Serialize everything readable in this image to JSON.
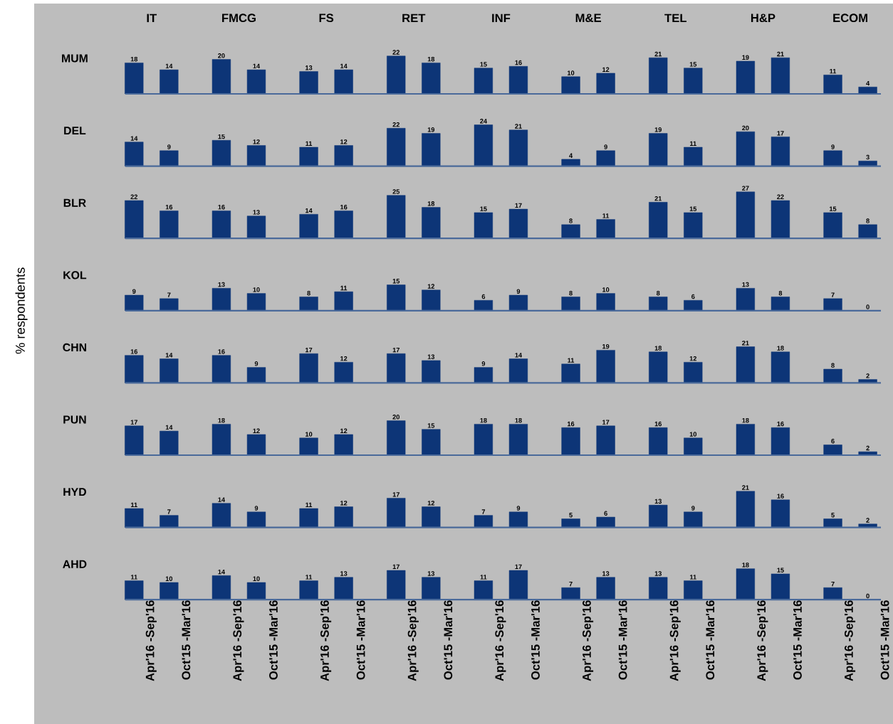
{
  "chart_data": [
    {
      "type": "bar",
      "title": "MUM",
      "categories": [
        "IT",
        "FMCG",
        "FS",
        "RET",
        "INF",
        "M&E",
        "TEL",
        "H&P",
        "ECOM"
      ],
      "tick_labels": "x",
      "data_labels": true,
      "series": [
        {
          "color": "#0d3577",
          "values": [
            18,
            20,
            13,
            22,
            15,
            10,
            21,
            19,
            11
          ]
        },
        {
          "color": "#0d3577",
          "values": [
            14,
            14,
            14,
            18,
            16,
            12,
            15,
            21,
            4
          ]
        }
      ]
    },
    {
      "type": "bar",
      "title": "DEL",
      "categories": [
        null,
        null,
        null,
        null,
        null,
        null,
        null,
        null,
        null
      ],
      "tick_labels": false,
      "data_labels": true,
      "series": [
        {
          "color": "#0d3577",
          "values": [
            14,
            15,
            11,
            22,
            24,
            4,
            19,
            20,
            9
          ]
        },
        {
          "color": "#0d3577",
          "values": [
            9,
            12,
            12,
            19,
            21,
            9,
            11,
            17,
            3
          ]
        }
      ]
    },
    {
      "type": "bar",
      "title": "BLR",
      "categories": [
        null,
        null,
        null,
        null,
        null,
        null,
        null,
        null,
        null
      ],
      "tick_labels": false,
      "data_labels": true,
      "series": [
        {
          "color": "#0d3577",
          "values": [
            22,
            16,
            14,
            25,
            15,
            8,
            21,
            27,
            15
          ]
        },
        {
          "color": "#0d3577",
          "values": [
            16,
            13,
            16,
            18,
            17,
            11,
            15,
            22,
            8
          ]
        }
      ]
    },
    {
      "type": "bar",
      "title": "KOL",
      "ylabel": "% respondents",
      "categories": [
        null,
        null,
        null,
        null,
        null,
        null,
        null,
        null,
        null
      ],
      "tick_labels": false,
      "data_labels": true,
      "series": [
        {
          "color": "#0d3577",
          "values": [
            9,
            13,
            8,
            15,
            6,
            8,
            8,
            13,
            7
          ]
        },
        {
          "color": "#0d3577",
          "values": [
            7,
            10,
            11,
            12,
            9,
            10,
            6,
            8,
            0
          ]
        }
      ]
    },
    {
      "type": "bar",
      "title": "CHN",
      "categories": [
        null,
        null,
        null,
        null,
        null,
        null,
        null,
        null,
        null
      ],
      "tick_labels": false,
      "data_labels": true,
      "series": [
        {
          "color": "#0d3577",
          "values": [
            16,
            16,
            17,
            17,
            9,
            11,
            18,
            21,
            8
          ]
        },
        {
          "color": "#0d3577",
          "values": [
            14,
            9,
            12,
            13,
            14,
            19,
            12,
            18,
            2
          ]
        }
      ]
    },
    {
      "type": "bar",
      "title": "PUN",
      "categories": [
        null,
        null,
        null,
        null,
        null,
        null,
        null,
        null,
        null
      ],
      "tick_labels": false,
      "data_labels": true,
      "series": [
        {
          "color": "#0d3577",
          "values": [
            17,
            18,
            10,
            20,
            18,
            16,
            16,
            18,
            6
          ]
        },
        {
          "color": "#0d3577",
          "values": [
            14,
            12,
            12,
            15,
            18,
            17,
            10,
            16,
            2
          ]
        }
      ]
    },
    {
      "type": "bar",
      "title": "HYD",
      "categories": [
        null,
        null,
        null,
        null,
        null,
        null,
        null,
        null,
        null
      ],
      "tick_labels": false,
      "data_labels": true,
      "series": [
        {
          "color": "#0d3577",
          "values": [
            11,
            14,
            11,
            17,
            7,
            5,
            13,
            21,
            5
          ]
        },
        {
          "color": "#0d3577",
          "values": [
            7,
            9,
            12,
            12,
            9,
            6,
            9,
            16,
            2
          ]
        }
      ]
    },
    {
      "type": "bar",
      "title": "AHD",
      "categories": [
        null,
        null,
        null,
        null,
        null,
        null,
        null,
        null,
        null
      ],
      "tick_labels": false,
      "data_labels": true,
      "series": [
        {
          "name": "Apr'16 -Sep'16",
          "color": "#0d3577",
          "values": [
            11,
            14,
            11,
            17,
            11,
            7,
            13,
            18,
            7
          ]
        },
        {
          "name": "Oct'15 -Mar'16",
          "color": "#0d3577",
          "values": [
            10,
            10,
            13,
            13,
            17,
            13,
            11,
            15,
            0
          ]
        }
      ]
    }
  ]
}
